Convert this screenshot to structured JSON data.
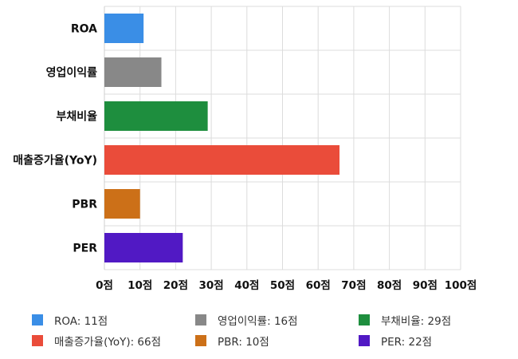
{
  "chart_data": {
    "type": "bar",
    "orientation": "horizontal",
    "title": "",
    "xlabel": "",
    "ylabel": "",
    "categories": [
      "ROA",
      "영업이익률",
      "부채비율",
      "매출증가율(YoY)",
      "PBR",
      "PER"
    ],
    "values": [
      11,
      16,
      29,
      66,
      10,
      22
    ],
    "colors": [
      "#3a8ee6",
      "#888888",
      "#1e8e3e",
      "#ea4c3a",
      "#cc7018",
      "#5119c4"
    ],
    "xlim": [
      0,
      100
    ],
    "xticks": [
      0,
      10,
      20,
      30,
      40,
      50,
      60,
      70,
      80,
      90,
      100
    ],
    "tick_suffix": "점",
    "grid": true,
    "legend_position": "bottom"
  },
  "legend": [
    {
      "label": "ROA: 11점",
      "color": "#3a8ee6"
    },
    {
      "label": "영업이익률: 16점",
      "color": "#888888"
    },
    {
      "label": "부채비율: 29점",
      "color": "#1e8e3e"
    },
    {
      "label": "매출증가율(YoY): 66점",
      "color": "#ea4c3a"
    },
    {
      "label": "PBR: 10점",
      "color": "#cc7018"
    },
    {
      "label": "PER: 22점",
      "color": "#5119c4"
    }
  ]
}
